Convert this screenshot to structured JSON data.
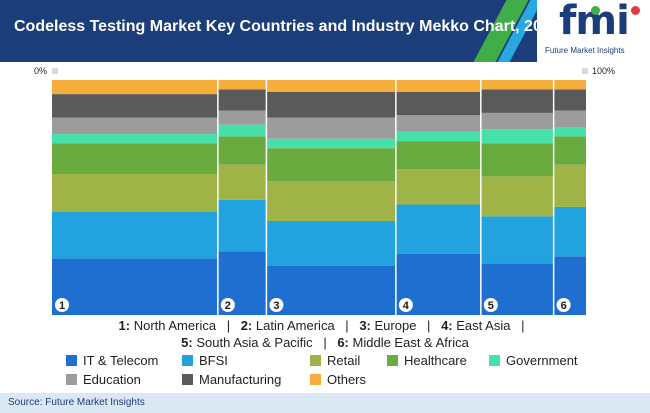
{
  "header": {
    "title": "Codeless Testing Market Key Countries and Industry Mekko Chart, 2021"
  },
  "logo": {
    "text": "fmi",
    "tagline": "Future Market Insights"
  },
  "colors": {
    "header_bg": "#1b3e7a",
    "stripe_green": "#3fae49",
    "stripe_light": "#29a8e0",
    "IT & Telecom": "#1f6fd1",
    "BFSI": "#22a2de",
    "Retail": "#9fb347",
    "Healthcare": "#6aab3f",
    "Government": "#46e1a8",
    "Education": "#9c9c9c",
    "Manufacturing": "#5a5a5a",
    "Others": "#f5ad3c"
  },
  "chart_data": {
    "type": "mekko",
    "title": "Codeless Testing Market Key Countries and Industry Mekko Chart, 2021",
    "x_axis_left": "0%",
    "x_axis_right": "100%",
    "categories": [
      "1",
      "2",
      "3",
      "4",
      "5",
      "6"
    ],
    "category_names": [
      "North America",
      "Latin America",
      "Europe",
      "East Asia",
      "South Asia & Pacific",
      "Middle East & Africa"
    ],
    "widths": [
      41,
      12,
      32,
      21,
      18,
      8
    ],
    "series": [
      {
        "name": "IT & Telecom",
        "values": [
          24,
          27,
          21,
          26,
          22,
          25
        ]
      },
      {
        "name": "BFSI",
        "values": [
          20,
          22,
          19,
          21,
          20,
          21
        ]
      },
      {
        "name": "Retail",
        "values": [
          16,
          15,
          17,
          15,
          17,
          18
        ]
      },
      {
        "name": "Healthcare",
        "values": [
          13,
          12,
          14,
          12,
          14,
          12
        ]
      },
      {
        "name": "Government",
        "values": [
          4,
          5,
          4,
          4,
          6,
          4
        ]
      },
      {
        "name": "Education",
        "values": [
          7,
          6,
          9,
          7,
          7,
          7
        ]
      },
      {
        "name": "Manufacturing",
        "values": [
          10,
          9,
          11,
          10,
          10,
          9
        ]
      },
      {
        "name": "Others",
        "values": [
          6,
          4,
          5,
          5,
          4,
          4
        ]
      }
    ]
  },
  "legend": {
    "countries": [
      {
        "num": "1:",
        "name": "North America"
      },
      {
        "num": "2:",
        "name": "Latin America"
      },
      {
        "num": "3:",
        "name": "Europe"
      },
      {
        "num": "4:",
        "name": "East Asia"
      },
      {
        "num": "5:",
        "name": "South Asia & Pacific"
      },
      {
        "num": "6:",
        "name": "Middle East & Africa"
      }
    ],
    "separator": "|",
    "industries": [
      "IT & Telecom",
      "BFSI",
      "Retail",
      "Healthcare",
      "Government",
      "Education",
      "Manufacturing",
      "Others"
    ]
  },
  "footer": {
    "source": "Source: Future Market Insights"
  }
}
